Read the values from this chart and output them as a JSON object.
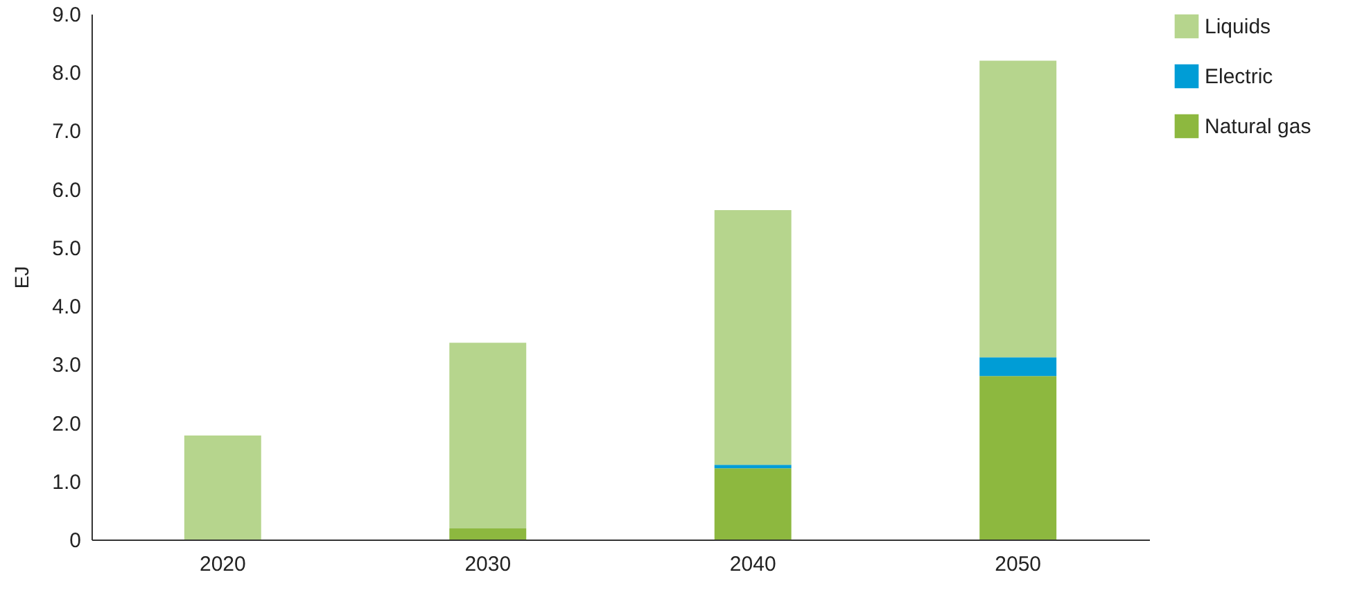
{
  "chart_data": {
    "type": "bar",
    "stacked": true,
    "ylabel": "EJ",
    "categories": [
      "2020",
      "2030",
      "2040",
      "2050"
    ],
    "series": [
      {
        "name": "Natural gas",
        "color": "#8db83f",
        "values": [
          0,
          0.19,
          1.22,
          2.8
        ]
      },
      {
        "name": "Electric",
        "color": "#009dd6",
        "values": [
          0,
          0,
          0.06,
          0.32
        ]
      },
      {
        "name": "Liquids",
        "color": "#b6d58d",
        "values": [
          1.78,
          3.18,
          4.36,
          5.08
        ]
      }
    ],
    "ylim": [
      0,
      9
    ],
    "yticks": [
      0,
      {
        "value": 1,
        "label": "1.0"
      },
      {
        "value": 2,
        "label": "2.0"
      },
      {
        "value": 3,
        "label": "3.0"
      },
      {
        "value": 4,
        "label": "4.0"
      },
      {
        "value": 5,
        "label": "5.0"
      },
      {
        "value": 6,
        "label": "6.0"
      },
      {
        "value": 7,
        "label": "7.0"
      },
      {
        "value": 8,
        "label": "8.0"
      },
      {
        "value": 9,
        "label": "9.0"
      }
    ],
    "grid": false,
    "legend": "right"
  }
}
